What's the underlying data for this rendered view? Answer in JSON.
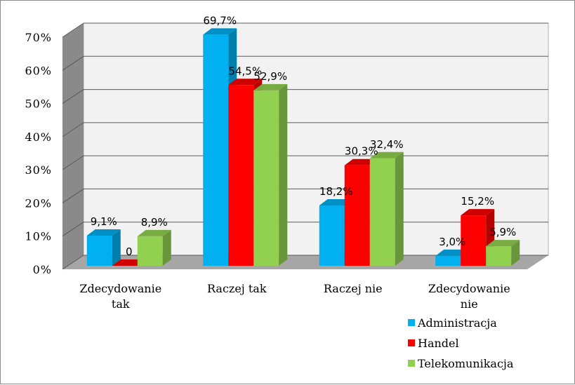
{
  "chart_data": {
    "type": "bar",
    "three_d": true,
    "categories": [
      [
        "Zdecydowanie",
        "tak"
      ],
      [
        "Raczej tak"
      ],
      [
        "Raczej nie"
      ],
      [
        "Zdecydowanie",
        "nie"
      ]
    ],
    "series": [
      {
        "name": "Administracja",
        "color": "#00b0f0",
        "values": [
          9.1,
          69.7,
          18.2,
          3.0
        ],
        "labels": [
          "9,1%",
          "69,7%",
          "18,2%",
          "3,0%"
        ]
      },
      {
        "name": "Handel",
        "color": "#ff0000",
        "values": [
          0,
          54.5,
          30.3,
          15.2
        ],
        "labels": [
          "0",
          "54,5%",
          "30,3%",
          "15,2%"
        ]
      },
      {
        "name": "Telekomunikacja",
        "color": "#92d050",
        "values": [
          8.9,
          52.9,
          32.4,
          5.9
        ],
        "labels": [
          "8,9%",
          "52,9%",
          "32,4%",
          "5,9%"
        ]
      }
    ],
    "yticks": [
      "0%",
      "10%",
      "20%",
      "30%",
      "40%",
      "50%",
      "60%",
      "70%"
    ],
    "ylim": [
      0,
      70
    ],
    "grid": true,
    "legend_position": "bottom-right"
  }
}
